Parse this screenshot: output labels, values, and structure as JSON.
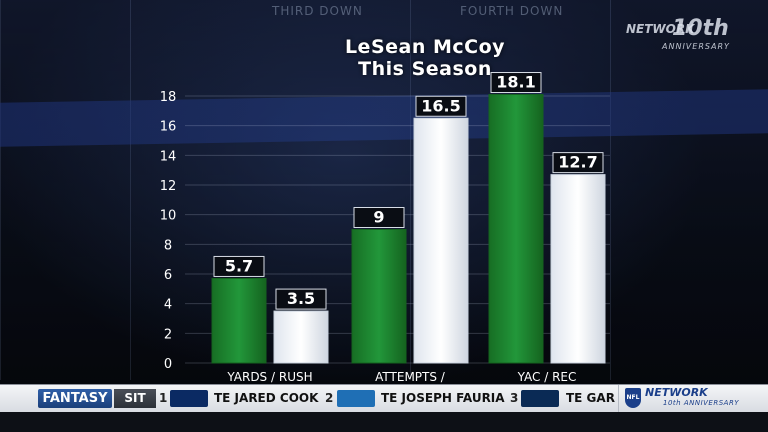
{
  "background": {
    "tabs": [
      "THIRD DOWN",
      "FOURTH DOWN"
    ]
  },
  "network_logo": {
    "text": "NETWORK",
    "number": "10th",
    "subtitle": "ANNIVERSARY"
  },
  "chart_data": {
    "type": "bar",
    "title": "LeSean McCoy",
    "subtitle": "This Season",
    "categories": [
      "Yards / Rush",
      "Attempts / Explosive Rush",
      "YAC / Rec"
    ],
    "series": [
      {
        "color": "#1f8a2c",
        "values": [
          5.7,
          9,
          18.1
        ]
      },
      {
        "color": "#eef2f7",
        "values": [
          3.5,
          16.5,
          12.7
        ]
      }
    ],
    "value_labels": [
      [
        "5.7",
        "3.5"
      ],
      [
        "9",
        "16.5"
      ],
      [
        "18.1",
        "12.7"
      ]
    ],
    "ylim": [
      0,
      18
    ],
    "yticks": [
      0,
      2,
      4,
      6,
      8,
      10,
      12,
      14,
      16,
      18
    ],
    "grid": true,
    "legend": "none"
  },
  "ticker": {
    "fantasy_label": "FANTASY",
    "sit_label": "SIT",
    "items": [
      {
        "rank": "1",
        "name": "TE JARED COOK",
        "team_color": "#0b2a63"
      },
      {
        "rank": "2",
        "name": "TE JOSEPH FAURIA",
        "team_color": "#1f6fb5"
      },
      {
        "rank": "3",
        "name": "TE GAR",
        "team_color": "#0a2a55"
      }
    ],
    "logo_text": "NETWORK",
    "logo_sub": "10th ANNIVERSARY",
    "shield_text": "NFL"
  }
}
